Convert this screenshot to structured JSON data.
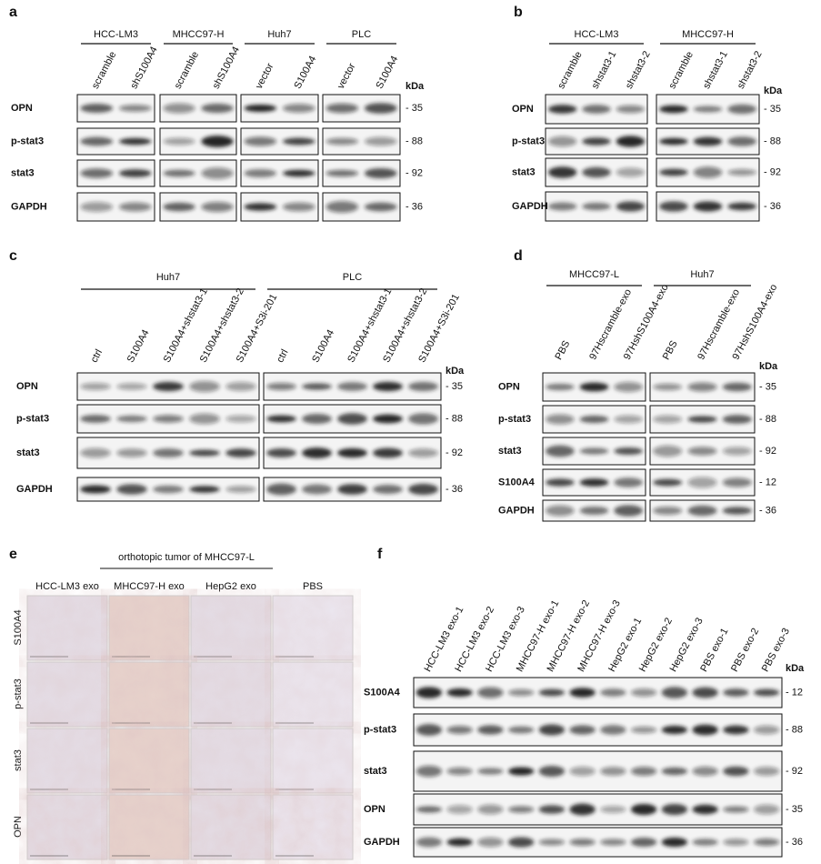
{
  "panels": [
    {
      "label": "a",
      "groups": [
        {
          "name": "HCC-LM3",
          "lanes": [
            "scramble",
            "shS100A4"
          ]
        },
        {
          "name": "MHCC97-H",
          "lanes": [
            "scramble",
            "shS100A4"
          ]
        },
        {
          "name": "Huh7",
          "lanes": [
            "vector",
            "S100A4"
          ]
        },
        {
          "name": "PLC",
          "lanes": [
            "vector",
            "S100A4"
          ]
        }
      ],
      "rows": [
        "OPN",
        "p-stat3",
        "stat3",
        "GAPDH"
      ],
      "markers": [
        "- 35",
        "- 88",
        "- 92",
        "- 36"
      ],
      "unit": "kDa"
    },
    {
      "label": "b",
      "groups": [
        {
          "name": "HCC-LM3",
          "lanes": [
            "scramble",
            "shstat3-1",
            "shstat3-2"
          ]
        },
        {
          "name": "MHCC97-H",
          "lanes": [
            "scramble",
            "shstat3-1",
            "shstat3-2"
          ]
        }
      ],
      "rows": [
        "OPN",
        "p-stat3",
        "stat3",
        "GAPDH"
      ],
      "markers": [
        "- 35",
        "- 88",
        "- 92",
        "- 36"
      ],
      "unit": "kDa"
    },
    {
      "label": "c",
      "groups": [
        {
          "name": "Huh7",
          "lanes": [
            "ctrl",
            "S100A4",
            "S100A4+shstat3-1",
            "S100A4+shstat3-2",
            "S100A4+S3i-201"
          ]
        },
        {
          "name": "PLC",
          "lanes": [
            "ctrl",
            "S100A4",
            "S100A4+shstat3-1",
            "S100A4+shstat3-2",
            "S100A4+S3i-201"
          ]
        }
      ],
      "rows": [
        "OPN",
        "p-stat3",
        "stat3",
        "GAPDH"
      ],
      "markers": [
        "- 35",
        "- 88",
        "- 92",
        "- 36"
      ],
      "unit": "kDa"
    },
    {
      "label": "d",
      "groups": [
        {
          "name": "MHCC97-L",
          "lanes": [
            "PBS",
            "97Hscramble-exo",
            "97HshS100A4-exo"
          ]
        },
        {
          "name": "Huh7",
          "lanes": [
            "PBS",
            "97Hscramble-exo",
            "97HshS100A4-exo"
          ]
        }
      ],
      "rows": [
        "OPN",
        "p-stat3",
        "stat3",
        "S100A4",
        "GAPDH"
      ],
      "markers": [
        "- 35",
        "- 88",
        "- 92",
        "- 12",
        "- 36"
      ],
      "unit": "kDa"
    },
    {
      "label": "e",
      "title": "orthotopic tumor of MHCC97-L",
      "columns": [
        "HCC-LM3 exo",
        "MHCC97-H exo",
        "HepG2 exo",
        "PBS"
      ],
      "rows": [
        "S100A4",
        "p-stat3",
        "stat3",
        "OPN"
      ]
    },
    {
      "label": "f",
      "groups": [
        {
          "lanes": [
            "HCC-LM3 exo-1",
            "HCC-LM3 exo-2",
            "HCC-LM3 exo-3",
            "MHCC97-H exo-1",
            "MHCC97-H exo-2",
            "MHCC97-H exo-3",
            "HepG2 exo-1",
            "HepG2 exo-2",
            "HepG2 exo-3",
            "PBS exo-1",
            "PBS exo-2",
            "PBS exo-3"
          ]
        }
      ],
      "rows": [
        "S100A4",
        "p-stat3",
        "stat3",
        "OPN",
        "GAPDH"
      ],
      "markers": [
        "- 12",
        "- 88",
        "- 92",
        "- 35",
        "- 36"
      ],
      "unit": "kDa"
    }
  ]
}
